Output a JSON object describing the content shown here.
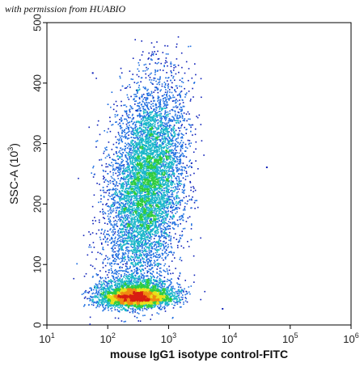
{
  "watermark": "with permission from HUABIO",
  "chart_data": {
    "type": "scatter",
    "title": "",
    "xlabel": "mouse IgG1 isotype control-FITC",
    "ylabel": {
      "main": "SSC-A",
      "unit_base": "10",
      "unit_exp": "3"
    },
    "x_scale": "log",
    "xlim": [
      10,
      1000000
    ],
    "ylim": [
      0,
      500
    ],
    "x_ticks": [
      {
        "value": 10,
        "base": "10",
        "exp": "1"
      },
      {
        "value": 100,
        "base": "10",
        "exp": "2"
      },
      {
        "value": 1000,
        "base": "10",
        "exp": "3"
      },
      {
        "value": 10000,
        "base": "10",
        "exp": "4"
      },
      {
        "value": 100000,
        "base": "10",
        "exp": "5"
      },
      {
        "value": 1000000,
        "base": "10",
        "exp": "6"
      }
    ],
    "y_ticks": [
      {
        "value": 0,
        "label": "0"
      },
      {
        "value": 100,
        "label": "100"
      },
      {
        "value": 200,
        "label": "200"
      },
      {
        "value": 300,
        "label": "300"
      },
      {
        "value": 400,
        "label": "400"
      },
      {
        "value": 500,
        "label": "500"
      }
    ],
    "density_colormap": [
      "#0a1db8",
      "#1f6fe0",
      "#19b7c9",
      "#2ecc3f",
      "#e8e11a",
      "#f08a12",
      "#d81f12"
    ],
    "populations": [
      {
        "name": "main",
        "log10_x_center": 2.62,
        "y_center": 230,
        "log10_x_spread": 0.3,
        "y_spread": 85,
        "count": 7000
      },
      {
        "name": "low",
        "log10_x_center": 2.45,
        "y_center": 38,
        "log10_x_spread": 0.3,
        "y_spread": 18,
        "count": 4000
      }
    ],
    "outliers": [
      {
        "x": 40000,
        "y": 262
      },
      {
        "x": 7500,
        "y": 28
      },
      {
        "x": 55,
        "y": 418
      }
    ],
    "grid": false
  }
}
